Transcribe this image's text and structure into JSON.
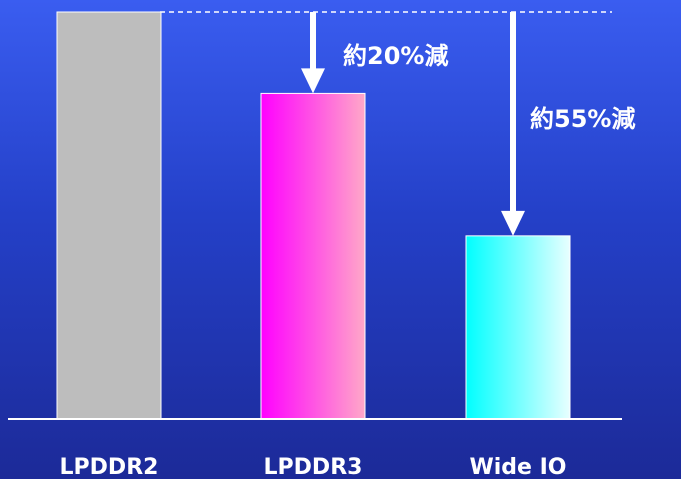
{
  "chart_data": {
    "type": "bar",
    "categories": [
      "LPDDR2",
      "LPDDR3",
      "Wide IO"
    ],
    "values": [
      100,
      80,
      45
    ],
    "ylim": [
      0,
      100
    ],
    "grid": false,
    "legend": "none",
    "colors": {
      "LPDDR2": [
        "#bdbdbd",
        "#bdbdbd"
      ],
      "LPDDR3": [
        "#ff00ff",
        "#ffa8c8"
      ],
      "Wide IO": [
        "#00ffff",
        "#e8ffff"
      ]
    },
    "annotations": [
      {
        "label": "約20%減",
        "target": "LPDDR3"
      },
      {
        "label": "約55%減",
        "target": "Wide IO"
      }
    ],
    "reference_line": {
      "value": 100,
      "style": "dashed"
    }
  }
}
